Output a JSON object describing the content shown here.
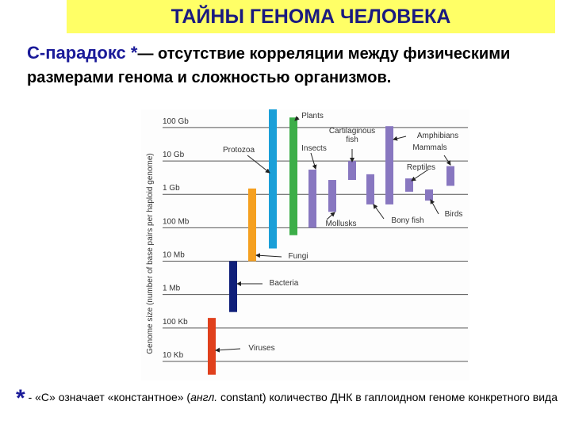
{
  "title": "ТАЙНЫ ГЕНОМА ЧЕЛОВЕКА",
  "intro": {
    "term": "С-парадокс *",
    "definition": "— отсутствие корреляции между физическими размерами генома и сложностью организмов."
  },
  "footnote": {
    "star": "*",
    "parts": [
      " - «С»  означает «константное» (",
      "англ.",
      " constant) количество ДНК в гаплоидном геноме конкретного вида"
    ]
  },
  "chart_data": {
    "type": "range",
    "y_label": "Genome size (number of base pairs per haploid genome)",
    "log_scale": true,
    "grid": true,
    "ylim": [
      3000,
      350000000000
    ],
    "yticks": [
      {
        "value": 10000,
        "label": "10 Kb"
      },
      {
        "value": 100000,
        "label": "100 Kb"
      },
      {
        "value": 1000000,
        "label": "1 Mb"
      },
      {
        "value": 10000000,
        "label": "10 Mb"
      },
      {
        "value": 100000000,
        "label": "100 Mb"
      },
      {
        "value": 1000000000,
        "label": "1 Gb"
      },
      {
        "value": 10000000000,
        "label": "10 Gb"
      },
      {
        "value": 100000000000,
        "label": "100 Gb"
      }
    ],
    "categories": [
      "Viruses",
      "Bacteria",
      "Fungi",
      "Protozoa",
      "Plants",
      "Insects",
      "Mollusks",
      "Cartilaginous fish",
      "Bony fish",
      "Amphibians",
      "Reptiles",
      "Birds",
      "Mammals"
    ],
    "low": [
      4000,
      300000,
      10000000,
      24000000,
      60000000,
      100000000,
      300000000,
      2700000000,
      500000000,
      500000000,
      1200000000,
      650000000,
      1800000000
    ],
    "high": [
      200000,
      10000000,
      1500000000,
      350000000000,
      200000000000,
      5500000000,
      2700000000,
      10000000000,
      4000000000,
      110000000000,
      3000000000,
      1400000000,
      7000000000
    ],
    "colors": [
      "#e0401c",
      "#10207a",
      "#f5a020",
      "#1a9fd8",
      "#3cae48",
      "#8877c0",
      "#8877c0",
      "#8877c0",
      "#8877c0",
      "#8877c0",
      "#8877c0",
      "#8877c0",
      "#8877c0"
    ]
  }
}
